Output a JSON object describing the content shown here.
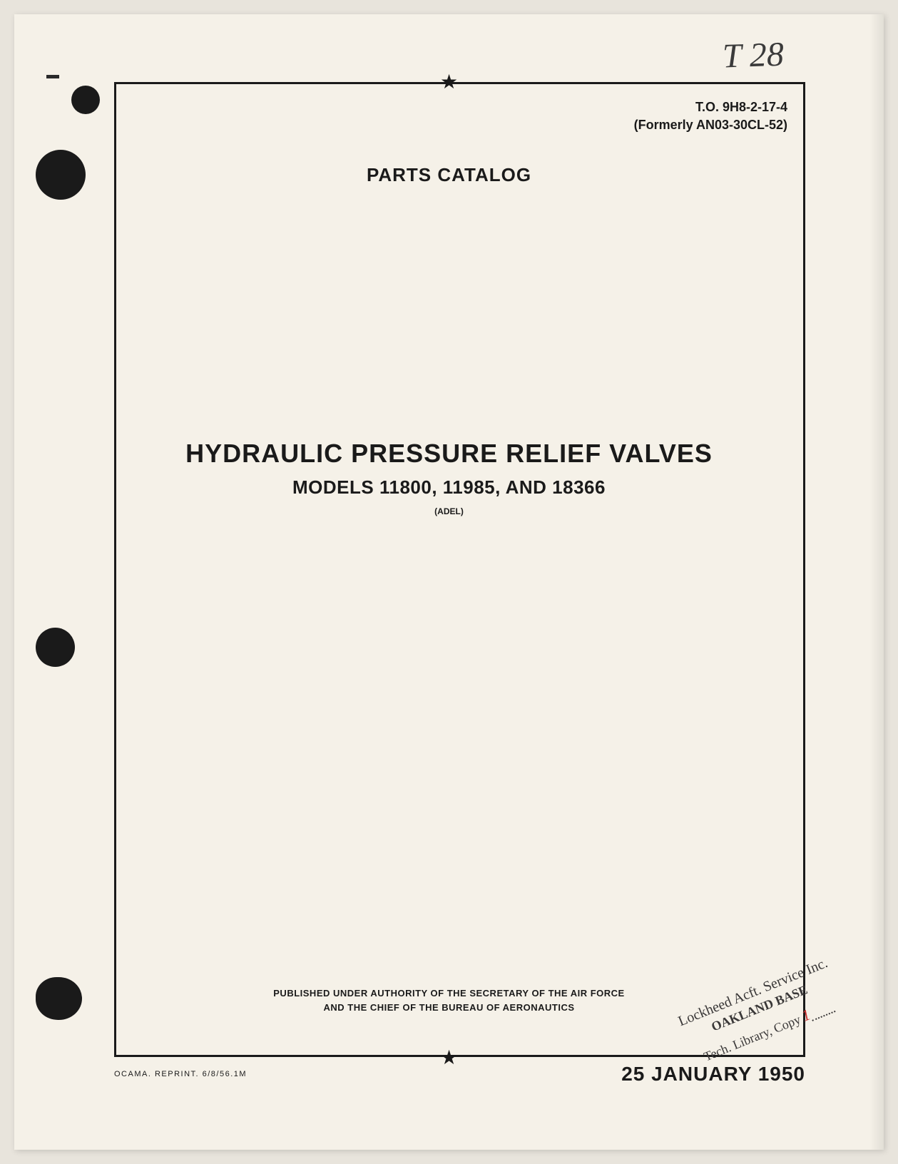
{
  "handwritten_notation": "T 28",
  "document_number": {
    "primary": "T.O. 9H8-2-17-4",
    "former": "(Formerly AN03-30CL-52)"
  },
  "document_type": "PARTS CATALOG",
  "title": "HYDRAULIC PRESSURE RELIEF VALVES",
  "subtitle": "MODELS 11800, 11985, AND 18366",
  "manufacturer": "(ADEL)",
  "authority": {
    "line1": "PUBLISHED UNDER AUTHORITY OF THE SECRETARY OF THE AIR FORCE",
    "line2": "AND THE CHIEF OF THE BUREAU OF AERONAUTICS"
  },
  "library_stamp": {
    "line1": "Lockheed Acft. Service Inc.",
    "line2": "OAKLAND BASE",
    "line3_prefix": "Tech. Library, Copy",
    "copy_number": "1"
  },
  "reprint_info": "OCAMA. REPRINT. 6/8/56.1M",
  "date": "25 JANUARY 1950",
  "stars": {
    "top": "★",
    "bottom": "★"
  },
  "styling": {
    "page_background": "#f5f1e8",
    "body_background": "#e8e4dc",
    "text_color": "#1a1a1a",
    "hole_color": "#1a1a1a",
    "stamp_color": "#3a3838",
    "copy_number_color": "#c73030",
    "border_width": 3,
    "main_title_fontsize": 36,
    "subtitle_fontsize": 26,
    "doc_type_fontsize": 26,
    "date_fontsize": 28
  }
}
